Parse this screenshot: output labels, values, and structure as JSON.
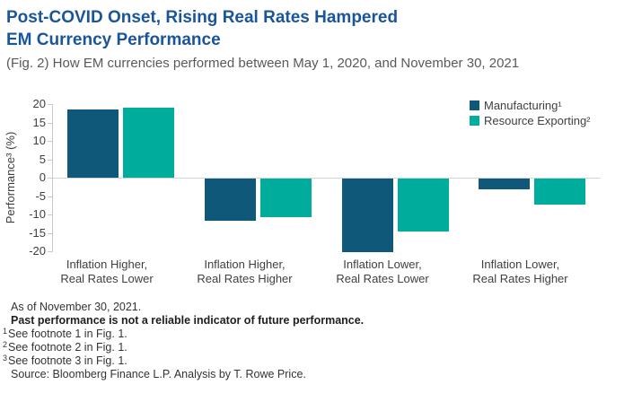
{
  "title": {
    "line1": "Post-COVID Onset, Rising Real Rates Hampered",
    "line2": "EM Currency Performance"
  },
  "subtitle": "(Fig. 2) How EM currencies performed between May 1, 2020, and November 30, 2021",
  "colors": {
    "title_blue": "#1a559b",
    "subtitle_gray": "#58595b",
    "axis_text": "#3f4043",
    "axis_line_gray": "#c8c9ca",
    "manufacturing_blue": "#0f587a",
    "resource_teal": "#00ac9b"
  },
  "chart_data": {
    "type": "bar",
    "title": "Post-COVID Onset, Rising Real Rates Hampered EM Currency Performance",
    "subtitle": "(Fig. 2) How EM currencies performed between May 1, 2020, and November 30, 2021",
    "ylabel": "Performance³ (%)",
    "xlabel": "",
    "ylim": [
      -20,
      20
    ],
    "yticks": [
      20,
      15,
      10,
      5,
      0,
      -5,
      -10,
      -15,
      -20
    ],
    "grid": "zero-line-only",
    "legend_position": "top-right",
    "categories": [
      {
        "line1": "Inflation Higher,",
        "line2": "Real Rates Lower"
      },
      {
        "line1": "Inflation Higher,",
        "line2": "Real Rates Higher"
      },
      {
        "line1": "Inflation Lower,",
        "line2": "Real Rates Lower"
      },
      {
        "line1": "Inflation Lower,",
        "line2": "Real Rates Higher"
      }
    ],
    "series": [
      {
        "name": "Manufacturing",
        "label": "Manufacturing¹",
        "color": "#0f587a",
        "values": [
          18.5,
          -11.5,
          -20,
          -3
        ]
      },
      {
        "name": "Resource Exporting",
        "label": "Resource Exporting²",
        "color": "#00ac9b",
        "values": [
          19,
          -10.5,
          -14.5,
          -7
        ]
      }
    ]
  },
  "footer": {
    "as_of": "As of November 30, 2021.",
    "disclaimer": "Past performance is not a reliable indicator of future performance.",
    "footnotes": [
      {
        "sup": "1",
        "text": "See footnote 1 in Fig. 1."
      },
      {
        "sup": "2",
        "text": "See footnote 2 in Fig. 1."
      },
      {
        "sup": "3",
        "text": "See footnote 3 in Fig. 1."
      }
    ],
    "source": "Source: Bloomberg Finance L.P. Analysis by T. Rowe Price."
  }
}
